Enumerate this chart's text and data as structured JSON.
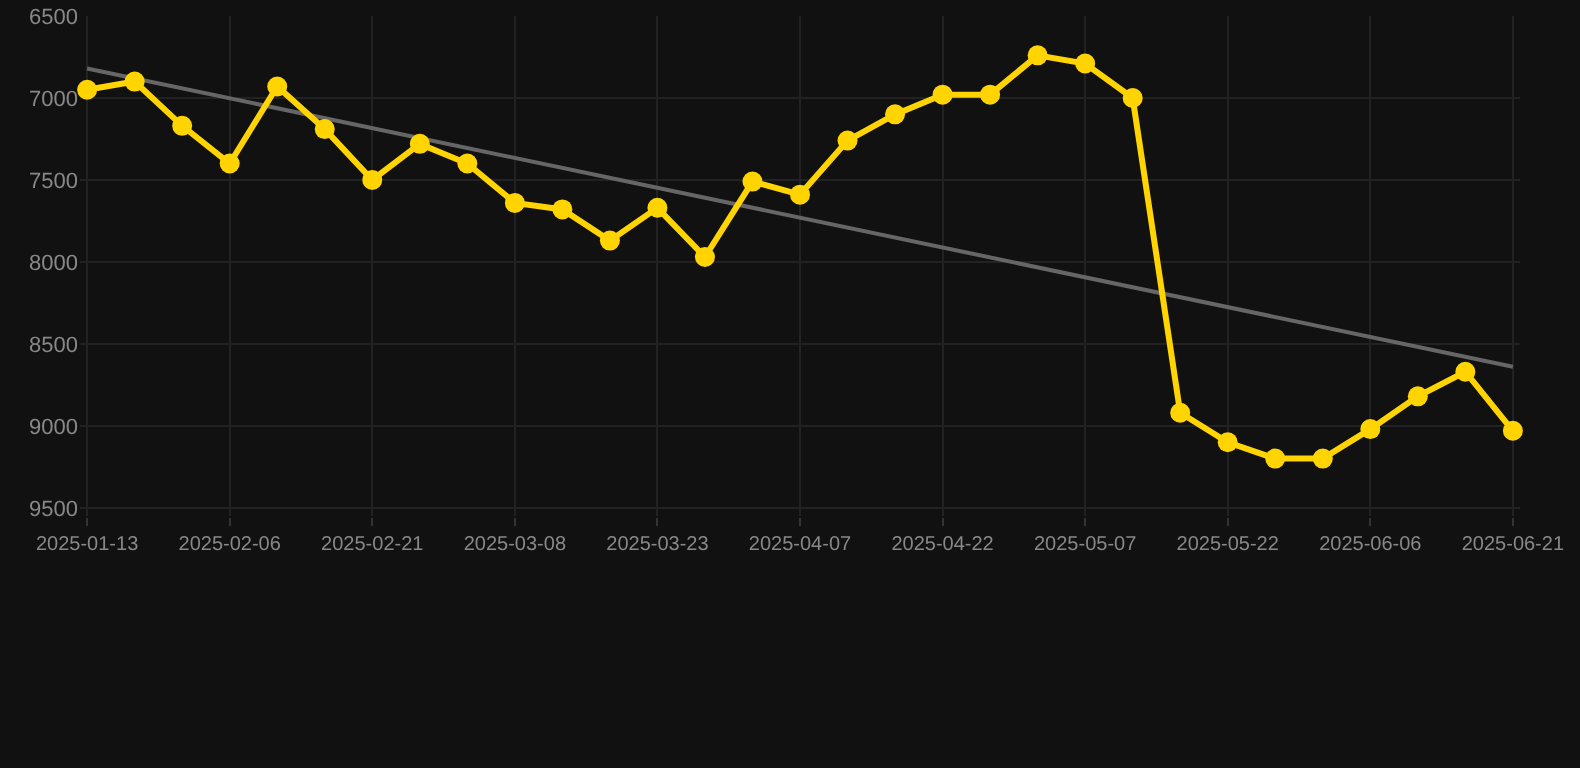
{
  "chart_data": {
    "type": "line",
    "categories": [
      "2025-01-13",
      null,
      null,
      "2025-02-06",
      null,
      null,
      "2025-02-21",
      null,
      null,
      "2025-03-08",
      null,
      null,
      "2025-03-23",
      null,
      null,
      "2025-04-07",
      null,
      null,
      "2025-04-22",
      null,
      null,
      "2025-05-07",
      null,
      null,
      "2025-05-22",
      null,
      null,
      "2025-06-06",
      null,
      null,
      "2025-06-21"
    ],
    "series": [
      {
        "color": "#666666",
        "marker": "none",
        "values": [
          6820,
          null,
          null,
          null,
          null,
          null,
          null,
          null,
          null,
          null,
          null,
          null,
          null,
          null,
          null,
          null,
          null,
          null,
          null,
          null,
          null,
          null,
          null,
          null,
          null,
          null,
          null,
          null,
          null,
          null,
          8640
        ]
      },
      {
        "color": "#ffd400",
        "marker": "circle",
        "values": [
          6950,
          6900,
          7170,
          7400,
          6930,
          7190,
          7500,
          7280,
          7400,
          7640,
          7680,
          7870,
          7670,
          7970,
          7510,
          7590,
          7260,
          7100,
          6980,
          6980,
          6740,
          6790,
          7000,
          8920,
          9100,
          9200,
          9200,
          9020,
          8820,
          8670,
          9030
        ]
      }
    ],
    "ylim": [
      9550,
      6500
    ],
    "yticks": [
      6500,
      7000,
      7500,
      8000,
      8500,
      9000,
      9500
    ],
    "grid": true
  }
}
